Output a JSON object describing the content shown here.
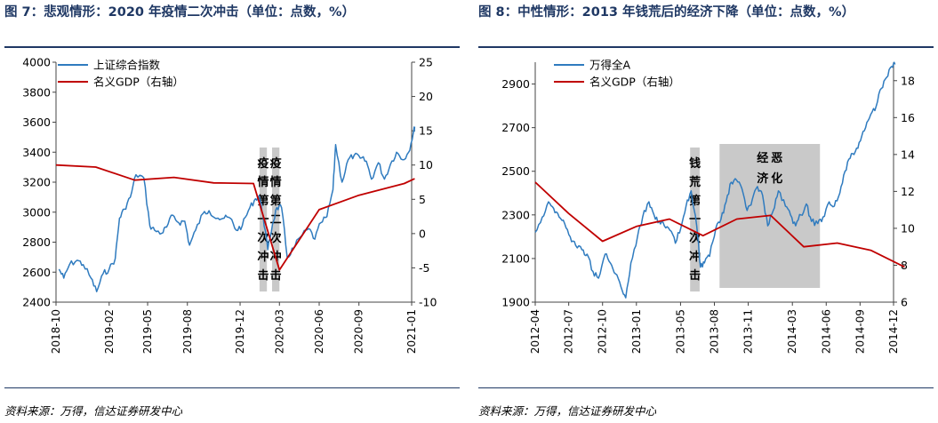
{
  "panels": [
    {
      "title": "图 7：悲观情形：2020 年疫情二次冲击（单位：点数，%）",
      "source": "资料来源：万得，信达证券研发中心"
    },
    {
      "title": "图 8：中性情形：2013 年钱荒后的经济下降（单位：点数，%）",
      "source": "资料来源：万得，信达证券研发中心"
    }
  ],
  "chart_data": [
    {
      "type": "line",
      "x_start": "2018-10",
      "x_end": "2021-01",
      "xticks": [
        "2018-10",
        "2019-02",
        "2019-05",
        "2019-08",
        "2019-12",
        "2020-03",
        "2020-06",
        "2020-09",
        "2021-01"
      ],
      "ylim": [
        2400,
        4000
      ],
      "yticks": [
        "2400",
        "2600",
        "2800",
        "3000",
        "3200",
        "3400",
        "3600",
        "3800",
        "4000"
      ],
      "y2lim": [
        -10,
        25
      ],
      "y2ticks": [
        "-10",
        "-5",
        "0",
        "5",
        "10",
        "15",
        "20",
        "25"
      ],
      "series": [
        {
          "name": "上证综合指数",
          "axis": "left",
          "color": "#2f7bbf",
          "points": [
            [
              "2018-10-08",
              2620
            ],
            [
              "2018-10-19",
              2560
            ],
            [
              "2018-11-01",
              2650
            ],
            [
              "2018-11-19",
              2680
            ],
            [
              "2018-12-03",
              2650
            ],
            [
              "2018-12-21",
              2560
            ],
            [
              "2019-01-03",
              2470
            ],
            [
              "2019-01-18",
              2590
            ],
            [
              "2019-02-01",
              2620
            ],
            [
              "2019-02-15",
              2690
            ],
            [
              "2019-02-25",
              2960
            ],
            [
              "2019-03-08",
              3020
            ],
            [
              "2019-03-22",
              3100
            ],
            [
              "2019-04-04",
              3250
            ],
            [
              "2019-04-22",
              3230
            ],
            [
              "2019-05-06",
              2910
            ],
            [
              "2019-05-17",
              2880
            ],
            [
              "2019-06-03",
              2860
            ],
            [
              "2019-06-14",
              2900
            ],
            [
              "2019-06-28",
              2980
            ],
            [
              "2019-07-12",
              2930
            ],
            [
              "2019-07-26",
              2940
            ],
            [
              "2019-08-06",
              2780
            ],
            [
              "2019-08-20",
              2880
            ],
            [
              "2019-09-06",
              2990
            ],
            [
              "2019-09-20",
              3010
            ],
            [
              "2019-10-11",
              2960
            ],
            [
              "2019-10-25",
              2960
            ],
            [
              "2019-11-08",
              2960
            ],
            [
              "2019-11-22",
              2880
            ],
            [
              "2019-12-06",
              2910
            ],
            [
              "2019-12-20",
              3010
            ],
            [
              "2020-01-03",
              3080
            ],
            [
              "2020-01-14",
              3110
            ],
            [
              "2020-01-23",
              2980
            ],
            [
              "2020-02-03",
              2750
            ],
            [
              "2020-02-14",
              2920
            ],
            [
              "2020-02-24",
              3030
            ],
            [
              "2020-03-06",
              3030
            ],
            [
              "2020-03-19",
              2700
            ],
            [
              "2020-04-03",
              2760
            ],
            [
              "2020-04-17",
              2830
            ],
            [
              "2020-05-08",
              2890
            ],
            [
              "2020-05-22",
              2820
            ],
            [
              "2020-06-05",
              2930
            ],
            [
              "2020-06-19",
              2970
            ],
            [
              "2020-07-03",
              3150
            ],
            [
              "2020-07-09",
              3450
            ],
            [
              "2020-07-24",
              3200
            ],
            [
              "2020-08-07",
              3350
            ],
            [
              "2020-08-21",
              3380
            ],
            [
              "2020-09-04",
              3360
            ],
            [
              "2020-09-18",
              3340
            ],
            [
              "2020-09-30",
              3220
            ],
            [
              "2020-10-16",
              3330
            ],
            [
              "2020-10-30",
              3220
            ],
            [
              "2020-11-13",
              3320
            ],
            [
              "2020-11-27",
              3400
            ],
            [
              "2020-12-11",
              3350
            ],
            [
              "2020-12-25",
              3400
            ],
            [
              "2021-01-05",
              3530
            ],
            [
              "2021-01-08",
              3570
            ]
          ]
        },
        {
          "name": "名义GDP（右轴）",
          "axis": "right",
          "color": "#c00000",
          "points": [
            [
              "2018-10-01",
              10.0
            ],
            [
              "2019-01-01",
              9.7
            ],
            [
              "2019-04-01",
              7.8
            ],
            [
              "2019-07-01",
              8.2
            ],
            [
              "2019-10-01",
              7.4
            ],
            [
              "2020-01-01",
              7.3
            ],
            [
              "2020-03-01",
              -5.3
            ],
            [
              "2020-06-01",
              3.5
            ],
            [
              "2020-09-01",
              5.6
            ],
            [
              "2020-12-15",
              7.3
            ],
            [
              "2021-01-08",
              8.0
            ]
          ]
        }
      ],
      "annotations": [
        {
          "text": "疫情第一次冲击",
          "start": "2020-01-15",
          "end": "2020-02-01"
        },
        {
          "text": "疫情第二次冲击",
          "start": "2020-02-13",
          "end": "2020-03-01"
        }
      ]
    },
    {
      "type": "line",
      "x_start": "2012-04",
      "x_end": "2014-12",
      "xticks": [
        "2012-04",
        "2012-07",
        "2012-10",
        "2013-01",
        "2013-05",
        "2013-08",
        "2013-11",
        "2014-03",
        "2014-06",
        "2014-09",
        "2014-12"
      ],
      "ylim": [
        1900,
        3000
      ],
      "yticks": [
        "1900",
        "2100",
        "2300",
        "2500",
        "2700",
        "2900"
      ],
      "y2lim": [
        6,
        19
      ],
      "y2ticks": [
        "6",
        "8",
        "10",
        "12",
        "14",
        "16",
        "18"
      ],
      "series": [
        {
          "name": "万得全A",
          "axis": "left",
          "color": "#2f7bbf",
          "points": [
            [
              "2012-04-01",
              2220
            ],
            [
              "2012-04-20",
              2290
            ],
            [
              "2012-05-07",
              2360
            ],
            [
              "2012-05-21",
              2330
            ],
            [
              "2012-06-05",
              2290
            ],
            [
              "2012-06-20",
              2260
            ],
            [
              "2012-07-05",
              2200
            ],
            [
              "2012-07-20",
              2160
            ],
            [
              "2012-08-06",
              2140
            ],
            [
              "2012-08-20",
              2120
            ],
            [
              "2012-09-05",
              2040
            ],
            [
              "2012-09-20",
              2010
            ],
            [
              "2012-10-08",
              2120
            ],
            [
              "2012-10-22",
              2080
            ],
            [
              "2012-11-05",
              2030
            ],
            [
              "2012-11-20",
              1970
            ],
            [
              "2012-12-03",
              1920
            ],
            [
              "2012-12-17",
              2080
            ],
            [
              "2013-01-04",
              2200
            ],
            [
              "2013-01-18",
              2290
            ],
            [
              "2013-02-04",
              2360
            ],
            [
              "2013-02-18",
              2300
            ],
            [
              "2013-03-04",
              2270
            ],
            [
              "2013-03-18",
              2250
            ],
            [
              "2013-04-02",
              2230
            ],
            [
              "2013-04-17",
              2170
            ],
            [
              "2013-05-02",
              2240
            ],
            [
              "2013-05-16",
              2340
            ],
            [
              "2013-05-30",
              2410
            ],
            [
              "2013-06-14",
              2250
            ],
            [
              "2013-06-24",
              2060
            ],
            [
              "2013-07-05",
              2080
            ],
            [
              "2013-07-19",
              2110
            ],
            [
              "2013-08-05",
              2240
            ],
            [
              "2013-08-19",
              2280
            ],
            [
              "2013-09-02",
              2360
            ],
            [
              "2013-09-16",
              2450
            ],
            [
              "2013-09-30",
              2460
            ],
            [
              "2013-10-15",
              2420
            ],
            [
              "2013-10-29",
              2320
            ],
            [
              "2013-11-12",
              2370
            ],
            [
              "2013-11-26",
              2430
            ],
            [
              "2013-12-10",
              2390
            ],
            [
              "2013-12-24",
              2250
            ],
            [
              "2014-01-08",
              2320
            ],
            [
              "2014-01-22",
              2410
            ],
            [
              "2014-02-10",
              2340
            ],
            [
              "2014-02-24",
              2300
            ],
            [
              "2014-03-10",
              2250
            ],
            [
              "2014-03-24",
              2300
            ],
            [
              "2014-04-08",
              2350
            ],
            [
              "2014-04-22",
              2270
            ],
            [
              "2014-05-09",
              2260
            ],
            [
              "2014-05-23",
              2290
            ],
            [
              "2014-06-09",
              2360
            ],
            [
              "2014-06-23",
              2340
            ],
            [
              "2014-07-08",
              2400
            ],
            [
              "2014-07-22",
              2500
            ],
            [
              "2014-08-05",
              2560
            ],
            [
              "2014-08-19",
              2590
            ],
            [
              "2014-09-02",
              2640
            ],
            [
              "2014-09-16",
              2700
            ],
            [
              "2014-09-30",
              2760
            ],
            [
              "2014-10-15",
              2800
            ],
            [
              "2014-10-29",
              2880
            ],
            [
              "2014-11-12",
              2930
            ],
            [
              "2014-11-26",
              2980
            ],
            [
              "2014-12-05",
              2990
            ]
          ]
        },
        {
          "name": "名义GDP（右轴）",
          "axis": "right",
          "color": "#c00000",
          "points": [
            [
              "2012-04-01",
              12.5
            ],
            [
              "2012-07-01",
              10.8
            ],
            [
              "2012-10-01",
              9.3
            ],
            [
              "2013-01-01",
              10.1
            ],
            [
              "2013-04-01",
              10.5
            ],
            [
              "2013-07-01",
              9.6
            ],
            [
              "2013-10-01",
              10.5
            ],
            [
              "2014-01-01",
              10.7
            ],
            [
              "2014-04-01",
              9.0
            ],
            [
              "2014-07-01",
              9.2
            ],
            [
              "2014-10-01",
              8.8
            ],
            [
              "2014-12-31",
              7.9
            ]
          ]
        }
      ],
      "annotations": [
        {
          "text": "钱荒第一次冲击",
          "start": "2013-05-27",
          "end": "2013-06-22"
        },
        {
          "text": "经济恶化",
          "start": "2013-08-15",
          "end": "2014-05-15"
        }
      ]
    }
  ]
}
